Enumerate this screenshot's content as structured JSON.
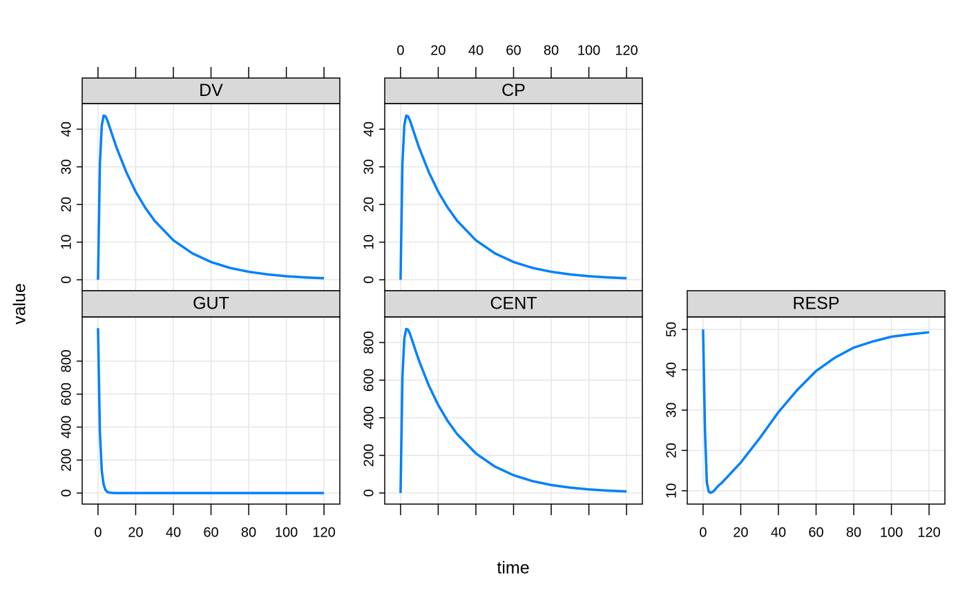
{
  "xlabel": "time",
  "ylabel": "value",
  "chart_data": [
    {
      "type": "line",
      "title": "DV",
      "x": [
        0,
        1,
        2,
        3,
        4,
        5,
        6,
        8,
        10,
        15,
        20,
        25,
        30,
        40,
        50,
        60,
        70,
        80,
        90,
        100,
        110,
        120
      ],
      "series": [
        {
          "name": "DV",
          "color": "#0080ff",
          "values": [
            0,
            30.9,
            41.0,
            43.6,
            43.4,
            42.3,
            40.8,
            37.8,
            34.9,
            28.6,
            23.4,
            19.2,
            15.7,
            10.5,
            7.05,
            4.73,
            3.17,
            2.13,
            1.43,
            0.96,
            0.64,
            0.43
          ]
        }
      ],
      "xlim": [
        -8.4,
        128.4
      ],
      "xticks": [
        0,
        20,
        40,
        60,
        80,
        100,
        120
      ],
      "ylim": [
        -2.9,
        46.8
      ],
      "yticks": [
        0,
        10,
        20,
        30,
        40
      ],
      "grid": true
    },
    {
      "type": "line",
      "title": "CP",
      "x": [
        0,
        1,
        2,
        3,
        4,
        5,
        6,
        8,
        10,
        15,
        20,
        25,
        30,
        40,
        50,
        60,
        70,
        80,
        90,
        100,
        110,
        120
      ],
      "series": [
        {
          "name": "CP",
          "color": "#0080ff",
          "values": [
            0,
            30.9,
            41.0,
            43.6,
            43.4,
            42.3,
            40.8,
            37.8,
            34.9,
            28.6,
            23.4,
            19.2,
            15.7,
            10.5,
            7.05,
            4.73,
            3.17,
            2.13,
            1.43,
            0.96,
            0.64,
            0.43
          ]
        }
      ],
      "xlim": [
        -8.4,
        128.4
      ],
      "xticks": [
        0,
        20,
        40,
        60,
        80,
        100,
        120
      ],
      "ylim": [
        -2.9,
        46.8
      ],
      "yticks": [
        0,
        10,
        20,
        30,
        40
      ],
      "grid": true
    },
    {
      "type": "line",
      "title": "GUT",
      "x": [
        0,
        1,
        2,
        3,
        4,
        5,
        6,
        8,
        10,
        15,
        20,
        25,
        30,
        40,
        50,
        60,
        70,
        80,
        90,
        100,
        110,
        120
      ],
      "series": [
        {
          "name": "GUT",
          "color": "#0080ff",
          "values": [
            1000,
            367.9,
            135.3,
            49.8,
            18.3,
            6.7,
            2.5,
            0.3,
            0.05,
            0,
            0,
            0,
            0,
            0,
            0,
            0,
            0,
            0,
            0,
            0,
            0,
            0
          ]
        }
      ],
      "xlim": [
        -8.4,
        128.4
      ],
      "xticks": [
        0,
        20,
        40,
        60,
        80,
        100,
        120
      ],
      "ylim": [
        -67,
        1068
      ],
      "yticks": [
        0,
        200,
        400,
        600,
        800
      ],
      "grid": true
    },
    {
      "type": "line",
      "title": "CENT",
      "x": [
        0,
        1,
        2,
        3,
        4,
        5,
        6,
        8,
        10,
        15,
        20,
        25,
        30,
        40,
        50,
        60,
        70,
        80,
        90,
        100,
        110,
        120
      ],
      "series": [
        {
          "name": "CENT",
          "color": "#0080ff",
          "values": [
            0,
            617.6,
            820.6,
            872.0,
            868.6,
            845.8,
            816.8,
            756.1,
            698.3,
            571.7,
            468.0,
            383.2,
            313.8,
            210.3,
            141.0,
            94.5,
            63.3,
            42.5,
            28.5,
            19.1,
            12.8,
            8.6
          ]
        }
      ],
      "xlim": [
        -8.4,
        128.4
      ],
      "xticks": [
        0,
        20,
        40,
        60,
        80,
        100,
        120
      ],
      "ylim": [
        -59,
        936
      ],
      "yticks": [
        0,
        200,
        400,
        600,
        800
      ],
      "grid": true
    },
    {
      "type": "line",
      "title": "RESP",
      "x": [
        0,
        1,
        2,
        3,
        4,
        5,
        6,
        8,
        10,
        15,
        20,
        25,
        30,
        40,
        50,
        60,
        70,
        80,
        90,
        100,
        110,
        120
      ],
      "series": [
        {
          "name": "RESP",
          "color": "#0080ff",
          "values": [
            50,
            25,
            12,
            9.8,
            9.5,
            9.7,
            10.1,
            11.2,
            12,
            14.5,
            17,
            20,
            23,
            29.5,
            35,
            39.7,
            43,
            45.5,
            47,
            48.2,
            48.8,
            49.3
          ]
        }
      ],
      "xlim": [
        -8.4,
        128.4
      ],
      "xticks": [
        0,
        20,
        40,
        60,
        80,
        100,
        120
      ],
      "ylim": [
        6.7,
        53.1
      ],
      "yticks": [
        10,
        20,
        30,
        40,
        50
      ],
      "grid": true
    }
  ]
}
